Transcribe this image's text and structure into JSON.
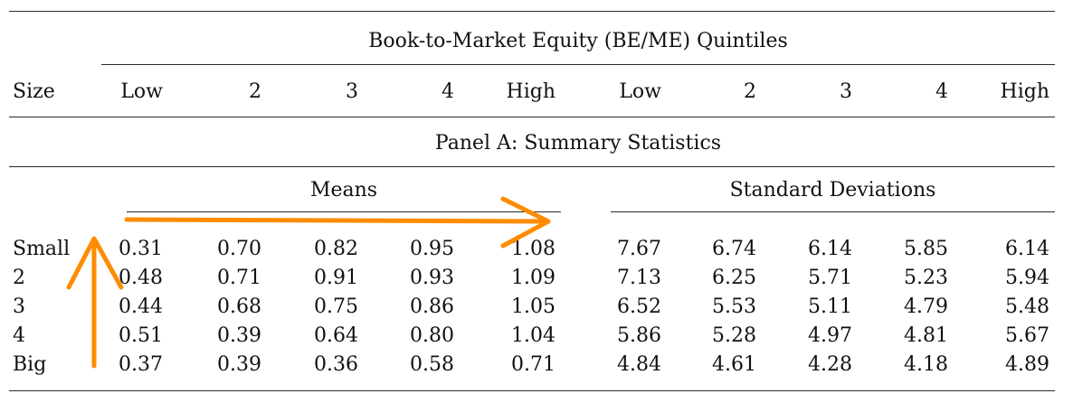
{
  "table": {
    "spanner": "Book-to-Market Equity (BE/ME) Quintiles",
    "size_header": "Size",
    "col_headers": [
      "Low",
      "2",
      "3",
      "4",
      "High",
      "Low",
      "2",
      "3",
      "4",
      "High"
    ],
    "panel_title": "Panel A: Summary Statistics",
    "group_means": "Means",
    "group_sd": "Standard Deviations",
    "rows": [
      {
        "label": "Small",
        "values": [
          "0.31",
          "0.70",
          "0.82",
          "0.95",
          "1.08",
          "7.67",
          "6.74",
          "6.14",
          "5.85",
          "6.14"
        ]
      },
      {
        "label": "2",
        "values": [
          "0.48",
          "0.71",
          "0.91",
          "0.93",
          "1.09",
          "7.13",
          "6.25",
          "5.71",
          "5.23",
          "5.94"
        ]
      },
      {
        "label": "3",
        "values": [
          "0.44",
          "0.68",
          "0.75",
          "0.86",
          "1.05",
          "6.52",
          "5.53",
          "5.11",
          "4.79",
          "5.48"
        ]
      },
      {
        "label": "4",
        "values": [
          "0.51",
          "0.39",
          "0.64",
          "0.80",
          "1.04",
          "5.86",
          "5.28",
          "4.97",
          "4.81",
          "5.67"
        ]
      },
      {
        "label": "Big",
        "values": [
          "0.37",
          "0.39",
          "0.36",
          "0.58",
          "0.71",
          "4.84",
          "4.61",
          "4.28",
          "4.18",
          "4.89"
        ]
      }
    ]
  },
  "annotations": {
    "arrow_color": "#ff8c00"
  }
}
